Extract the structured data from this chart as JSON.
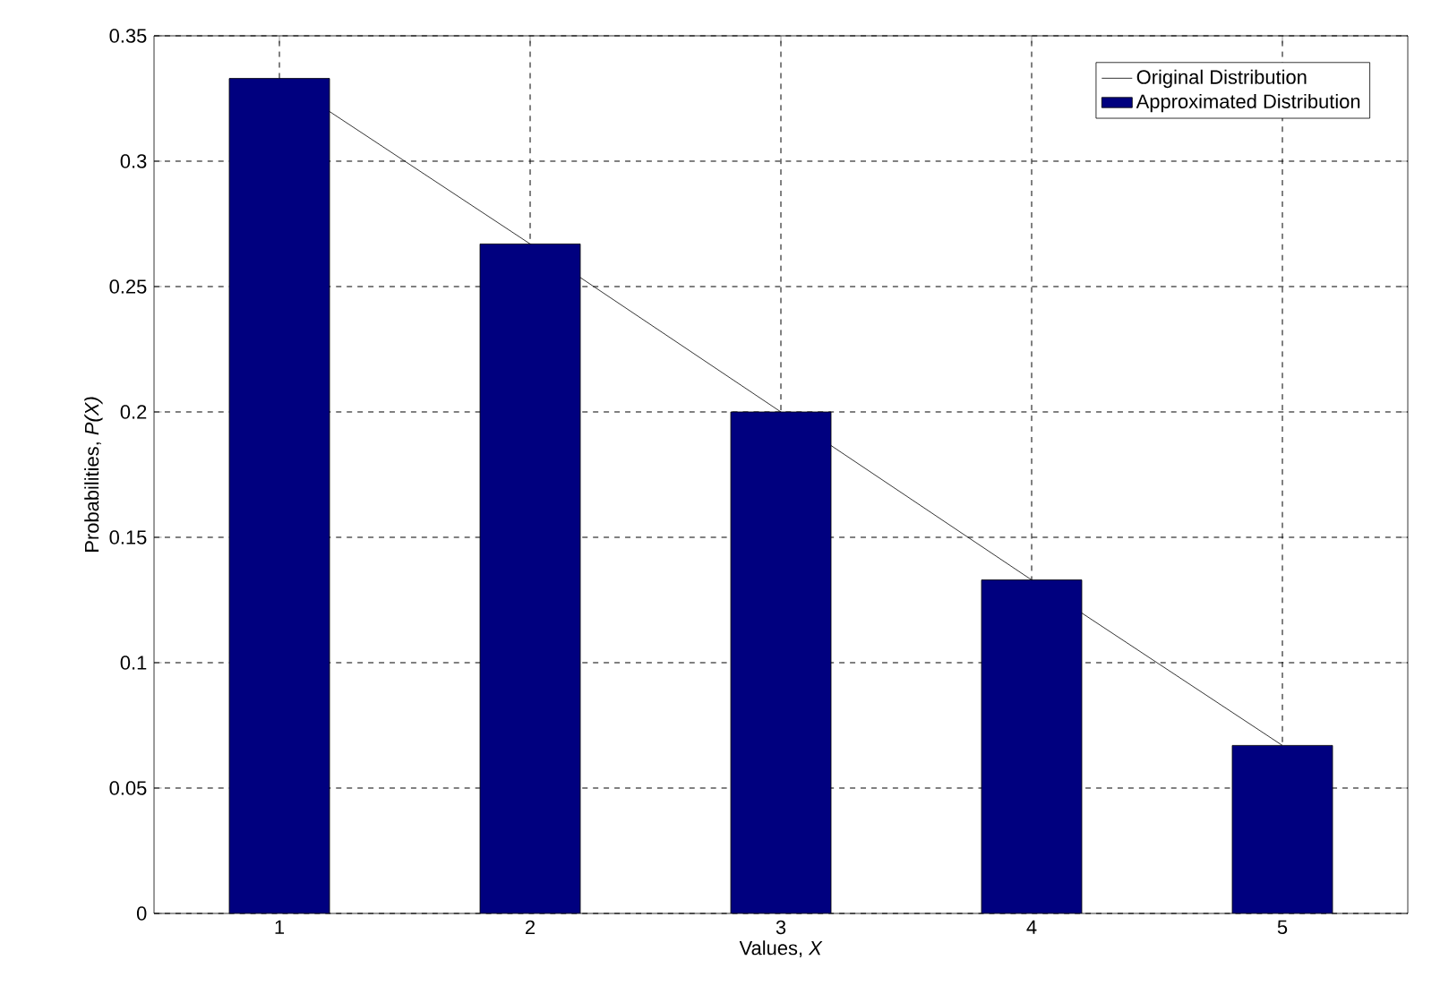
{
  "chart_data": {
    "type": "bar",
    "xlabel": "Values, *X*",
    "ylabel": "Probabilities, *P(X)*",
    "x": [
      1,
      2,
      3,
      4,
      5
    ],
    "series": [
      {
        "name": "Original Distribution",
        "type": "line",
        "color": "#000000",
        "values": [
          0.333,
          0.267,
          0.2,
          0.133,
          0.067
        ]
      },
      {
        "name": "Approximated Distribution",
        "color": "#00007f",
        "values": [
          0.333,
          0.267,
          0.2,
          0.133,
          0.067
        ]
      }
    ],
    "xlim": [
      0.5,
      5.5
    ],
    "xticks": [
      1,
      2,
      3,
      4,
      5
    ],
    "ylim": [
      0,
      0.35
    ],
    "yticks": [
      0,
      0.05,
      0.1,
      0.15,
      0.2,
      0.25,
      0.3,
      0.35
    ],
    "grid": true,
    "legend": "top right",
    "line_style": "solid",
    "marker": "none"
  }
}
